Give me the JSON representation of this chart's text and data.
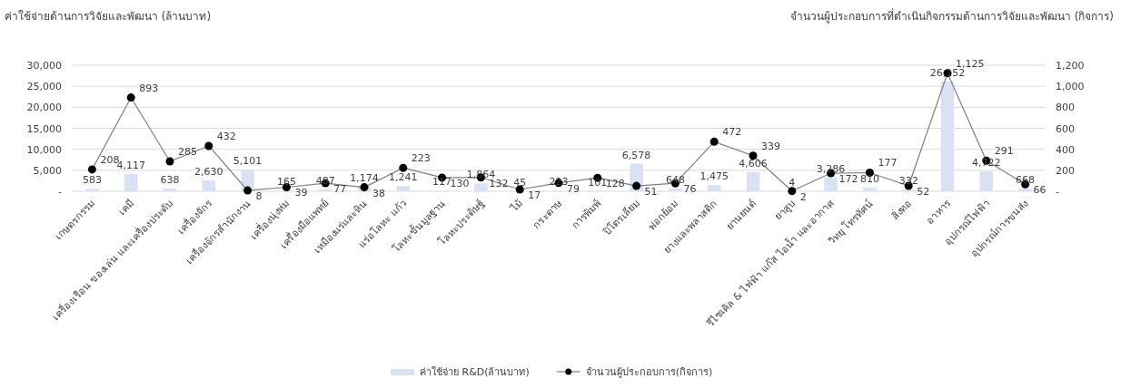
{
  "chart_data": {
    "type": "bar",
    "ylabel": "ค่าใช้จ่ายด้านการวิจัยและพัฒนา  (ล้านบาท)",
    "y2label": "จำนวนผู้ประกอบการที่ดำเนินกิจกรรมด้านการวิจัยและพัฒนา (กิจการ)",
    "categories": [
      "เกษตรกรรม",
      "เคมี",
      "เครื่องเรือน ของเล่น และเครื่องประดับ",
      "เครื่องจักร",
      "เครื่องจักรสำนักงาน",
      "เครื่องนุ่งห่ม",
      "เครื่องมือแพทย์",
      "เหมืองแร่และหิน",
      "แร่อโลหะ แก้ว",
      "โลหะขั้นมูลฐาน",
      "โลหะประดิษฐ์",
      "ไม้",
      "กระดาษ",
      "การพิมพ์",
      "ปิโตรเลียม",
      "ฟอกย้อม",
      "ยางและพลาสติก",
      "ยานยนต์",
      "ยาสูบ",
      "รีไซเคิล & ไฟฟ้า แก๊ส ไอน้ำ และอากาศ",
      "วิทยุ โทรทัศน์",
      "สิ่งทอ",
      "อาหาร",
      "อุปกรณ์ไฟฟ้า",
      "อุปกรณ์การขนส่ง"
    ],
    "series": [
      {
        "name": "ค่าใช้จ่าย R&D(ล้านบาท)",
        "color": "#d9e2f3",
        "values": [
          583,
          4117,
          638,
          2630,
          5101,
          165,
          487,
          1174,
          1241,
          117,
          1864,
          45,
          223,
          101,
          6578,
          648,
          1475,
          4606,
          4,
          3286,
          810,
          332,
          26152,
          4722,
          668
        ],
        "value_labels": [
          "583",
          "4,117",
          "638",
          "2,630",
          "5,101",
          "165",
          "487",
          "1,174",
          "1,241",
          "117",
          "1,864",
          "45",
          "223",
          "101",
          "6,578",
          "648",
          "1,475",
          "4,606",
          "4",
          "3,286",
          "810",
          "332",
          "26,152",
          "4,722",
          "668"
        ]
      },
      {
        "name": "จำนวนผู้ประกอบการ(กิจการ)",
        "type": "line",
        "axis": "y2",
        "color": "#000000",
        "marker": "circle",
        "values": [
          208,
          893,
          285,
          432,
          8,
          39,
          77,
          38,
          223,
          130,
          132,
          17,
          79,
          128,
          51,
          76,
          472,
          339,
          2,
          172,
          177,
          52,
          1125,
          291,
          66
        ],
        "value_labels": [
          "208",
          "893",
          "285",
          "432",
          "8",
          "39",
          "77",
          "38",
          "223",
          "130",
          "132",
          "17",
          "79",
          "128",
          "51",
          "76",
          "472",
          "339",
          "2",
          "172",
          "177",
          "52",
          "1,125",
          "291",
          "66"
        ]
      }
    ],
    "ylim": [
      0,
      30000
    ],
    "yticks": [
      {
        "value": 0,
        "label": "-"
      },
      {
        "value": 5000,
        "label": "5,000"
      },
      {
        "value": 10000,
        "label": "10,000"
      },
      {
        "value": 15000,
        "label": "15,000"
      },
      {
        "value": 20000,
        "label": "20,000"
      },
      {
        "value": 25000,
        "label": "25,000"
      },
      {
        "value": 30000,
        "label": "30,000"
      }
    ],
    "y2lim": [
      0,
      1200
    ],
    "y2ticks": [
      {
        "value": 0,
        "label": "-"
      },
      200,
      400,
      600,
      800,
      {
        "value": 1000,
        "label": "1,000"
      },
      {
        "value": 1200,
        "label": "1,200"
      }
    ],
    "grid": "y",
    "legend": "bottom",
    "data_labels": true
  }
}
